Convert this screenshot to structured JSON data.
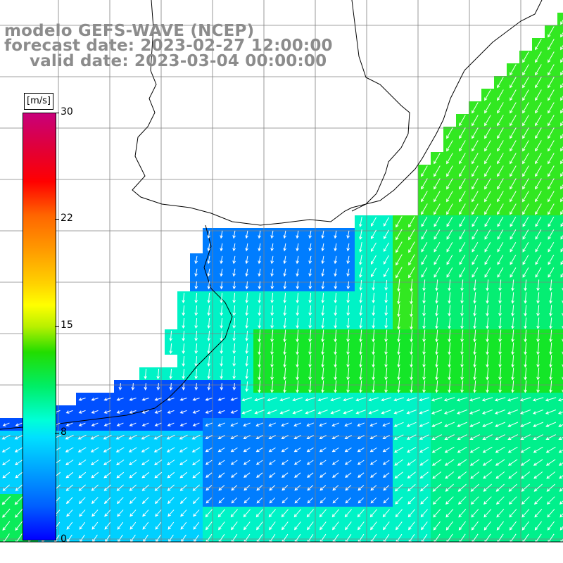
{
  "title": {
    "line1": "modelo GEFS-WAVE (NCEP)",
    "line2": "forecast date: 2023-02-27 12:00:00",
    "line3": "valid date: 2023-03-04 00:00:00"
  },
  "colorbar": {
    "unit": "[m/s]",
    "labels": [
      "30",
      "22",
      "15",
      "8",
      "0"
    ],
    "colors": {
      "max": "#c8007a",
      "red": "#ff0000",
      "yellow": "#ffff00",
      "green": "#22dd00",
      "cyan": "#00ffd8",
      "min": "#0000ff"
    }
  },
  "map": {
    "variable": "wind speed and direction",
    "grid": "on",
    "coastline_color": "#000000",
    "gridline_color": "#808080",
    "arrow_color": "#ffffff"
  }
}
